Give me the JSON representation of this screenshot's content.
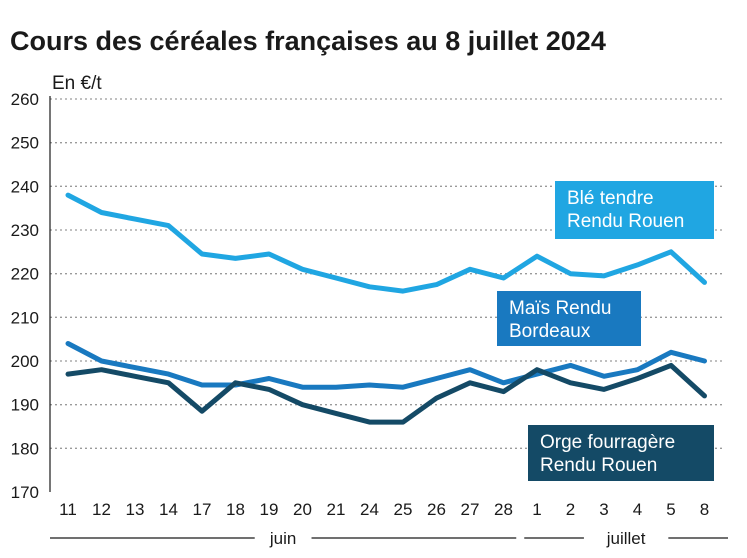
{
  "chart_data": {
    "type": "line",
    "title": "Cours des céréales françaises au 8 juillet 2024",
    "ylabel": "En €/t",
    "ylim": [
      170,
      260
    ],
    "yticks": [
      170,
      180,
      190,
      200,
      210,
      220,
      230,
      240,
      250,
      260
    ],
    "grid": true,
    "categories": [
      "11",
      "12",
      "13",
      "14",
      "17",
      "18",
      "19",
      "20",
      "21",
      "24",
      "25",
      "26",
      "27",
      "28",
      "1",
      "2",
      "3",
      "4",
      "5",
      "8"
    ],
    "months": [
      {
        "name": "juin",
        "start": 0,
        "end": 13
      },
      {
        "name": "juillet",
        "start": 14,
        "end": 19
      }
    ],
    "series": [
      {
        "name": "Blé tendre Rendu Rouen",
        "label_lines": [
          "Blé tendre",
          "Rendu Rouen"
        ],
        "color": "#20a6e2",
        "values": [
          238,
          234,
          232.5,
          231,
          224.5,
          223.5,
          224.5,
          221,
          219,
          217,
          216,
          217.5,
          221,
          219,
          224,
          220,
          219.5,
          222,
          225,
          218
        ]
      },
      {
        "name": "Maïs Rendu Bordeaux",
        "label_lines": [
          "Maïs Rendu",
          "Bordeaux"
        ],
        "color": "#1979c0",
        "values": [
          204,
          200,
          198.5,
          197,
          194.5,
          194.5,
          196,
          194,
          194,
          194.5,
          194,
          196,
          198,
          195,
          197,
          199,
          196.5,
          198,
          202,
          200
        ]
      },
      {
        "name": "Orge fourragère Rendu Rouen",
        "label_lines": [
          "Orge fourragère",
          "Rendu Rouen"
        ],
        "color": "#144a66",
        "values": [
          197,
          198,
          196.5,
          195,
          188.5,
          195,
          193.5,
          190,
          188,
          186,
          186,
          191.5,
          195,
          193,
          198,
          195,
          193.5,
          196,
          199,
          192
        ]
      }
    ]
  }
}
